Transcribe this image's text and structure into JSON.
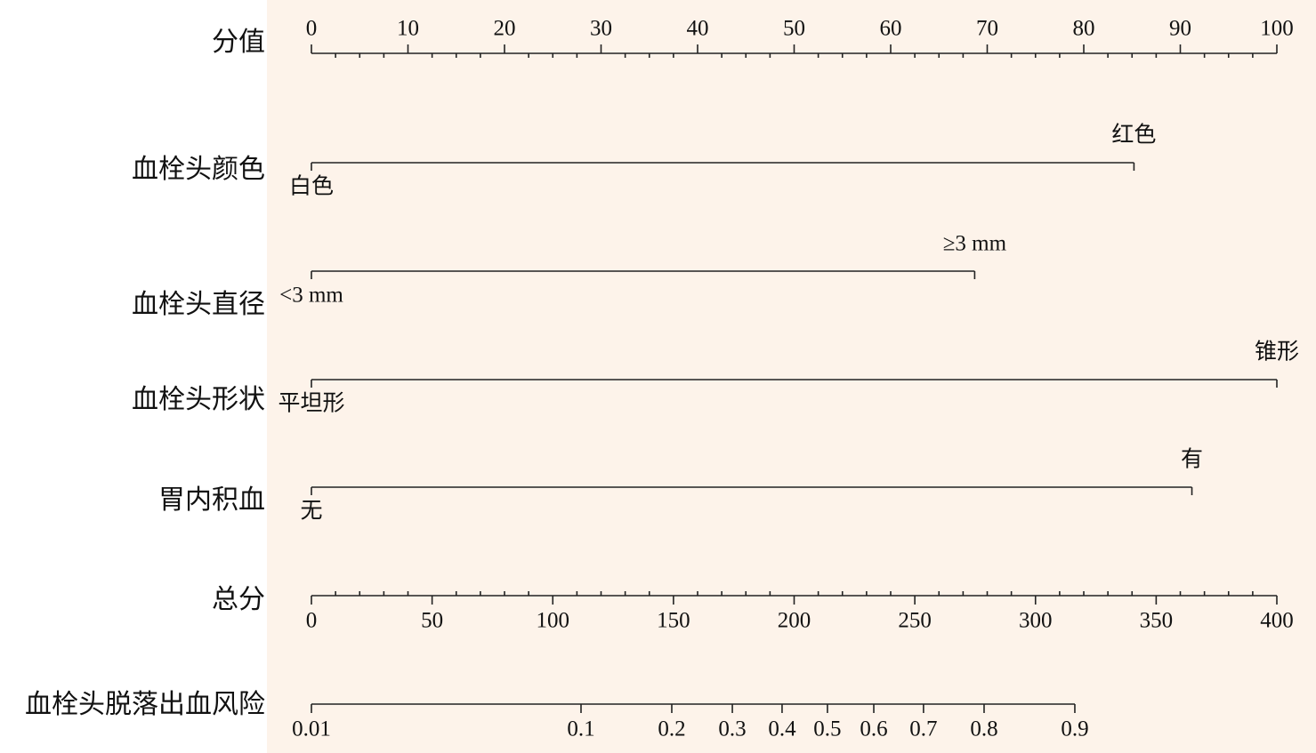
{
  "chart_data": {
    "type": "nomogram",
    "points": {
      "label": "分值",
      "xlim": [
        0,
        100
      ],
      "xticks": [
        0,
        10,
        20,
        30,
        40,
        50,
        60,
        70,
        80,
        90,
        100
      ],
      "minor_xticks": [
        2.5,
        5,
        7.5,
        12.5,
        15,
        17.5,
        22.5,
        25,
        27.5,
        32.5,
        35,
        37.5,
        42.5,
        45,
        47.5,
        52.5,
        55,
        57.5,
        62.5,
        65,
        67.5,
        72.5,
        75,
        77.5,
        82.5,
        85,
        87.5,
        92.5,
        95,
        97.5
      ]
    },
    "variables": [
      {
        "label": "血栓头颜色",
        "levels": [
          {
            "label": "白色",
            "points": 0
          },
          {
            "label": "红色",
            "points": 85.2
          }
        ]
      },
      {
        "label": "血栓头直径",
        "levels": [
          {
            "label": "<3 mm",
            "points": 0
          },
          {
            "label": "≥3 mm",
            "points": 68.7
          }
        ]
      },
      {
        "label": "血栓头形状",
        "levels": [
          {
            "label": "平坦形",
            "points": 0
          },
          {
            "label": "锥形",
            "points": 100
          }
        ]
      },
      {
        "label": "胃内积血",
        "levels": [
          {
            "label": "无",
            "points": 0
          },
          {
            "label": "有",
            "points": 91.2
          }
        ]
      }
    ],
    "total_points": {
      "label": "总分",
      "xlim": [
        0,
        400
      ],
      "xticks": [
        0,
        50,
        100,
        150,
        200,
        250,
        300,
        350,
        400
      ],
      "minor_xticks": [
        10,
        20,
        30,
        40,
        60,
        70,
        80,
        90,
        110,
        120,
        130,
        140,
        160,
        170,
        180,
        190,
        210,
        220,
        230,
        240,
        260,
        270,
        280,
        290,
        310,
        320,
        330,
        340,
        360,
        370,
        380,
        390
      ]
    },
    "risk": {
      "label": "血栓头脱落出血风险",
      "ticks": [
        {
          "value": 0.01,
          "points": 0
        },
        {
          "value": 0.1,
          "points": 111.7
        },
        {
          "value": 0.2,
          "points": 149.3
        },
        {
          "value": 0.3,
          "points": 174.4
        },
        {
          "value": 0.4,
          "points": 195.0
        },
        {
          "value": 0.5,
          "points": 213.8
        },
        {
          "value": 0.6,
          "points": 233.0
        },
        {
          "value": 0.7,
          "points": 253.6
        },
        {
          "value": 0.8,
          "points": 278.7
        },
        {
          "value": 0.9,
          "points": 316.3
        }
      ]
    }
  }
}
